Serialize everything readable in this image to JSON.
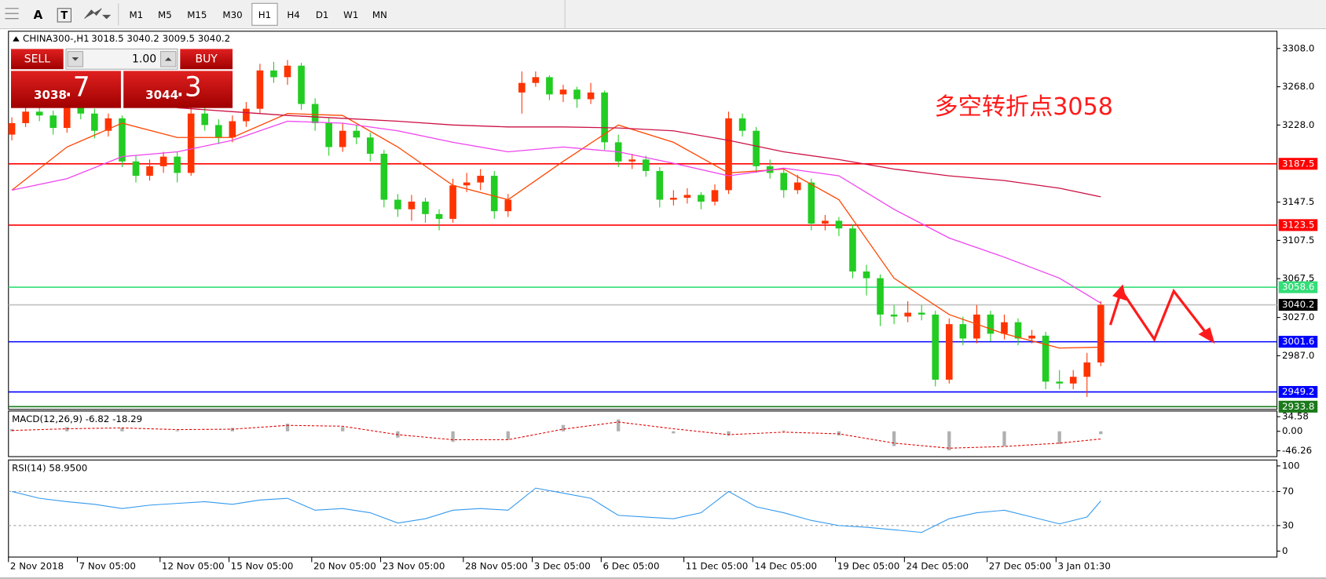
{
  "toolbar": {
    "tool_text": "A",
    "timeframes": [
      "M1",
      "M5",
      "M15",
      "M30",
      "H1",
      "H4",
      "D1",
      "W1",
      "MN"
    ],
    "active": "H1"
  },
  "trade_panel": {
    "sell_label": "SELL",
    "buy_label": "BUY",
    "lot": "1.00",
    "sell_price_main": "3038",
    "sell_price_frac": ".7",
    "buy_price_main": "3044",
    "buy_price_frac": ".3"
  },
  "chart_data": [
    {
      "type": "candlestick",
      "title": "CHINA300-,H1",
      "ohlc_text": "3018.5 3040.2 3009.5 3040.2",
      "annotation": "多空转折点3058",
      "up_color": "#ff3300",
      "down_color": "#22cc22",
      "categories": [
        "2 Nov 2018",
        null,
        null,
        null,
        null,
        "7 Nov 05:00",
        null,
        null,
        null,
        null,
        null,
        "12 Nov 05:00",
        null,
        null,
        null,
        null,
        "15 Nov 05:00",
        null,
        null,
        null,
        null,
        null,
        "20 Nov 05:00",
        null,
        null,
        null,
        null,
        "23 Nov 05:00",
        null,
        null,
        null,
        null,
        null,
        "28 Nov 05:00",
        null,
        null,
        null,
        null,
        "3 Dec 05:00",
        null,
        null,
        null,
        null,
        "6 Dec 05:00",
        null,
        null,
        null,
        null,
        null,
        "11 Dec 05:00",
        null,
        null,
        null,
        null,
        "14 Dec 05:00",
        null,
        null,
        null,
        null,
        null,
        "19 Dec 05:00",
        null,
        null,
        null,
        null,
        "24 Dec 05:00",
        null,
        null,
        null,
        null,
        null,
        "27 Dec 05:00",
        null,
        null,
        null,
        null,
        "3 Jan 01:30",
        null,
        null,
        null
      ],
      "candles": [
        [
          3218,
          3236,
          3212,
          3230
        ],
        [
          3230,
          3248,
          3226,
          3242
        ],
        [
          3242,
          3250,
          3232,
          3238
        ],
        [
          3238,
          3243,
          3218,
          3225
        ],
        [
          3225,
          3252,
          3220,
          3246
        ],
        [
          3246,
          3250,
          3234,
          3240
        ],
        [
          3240,
          3245,
          3214,
          3222
        ],
        [
          3222,
          3240,
          3216,
          3235
        ],
        [
          3235,
          3238,
          3184,
          3190
        ],
        [
          3190,
          3196,
          3168,
          3175
        ],
        [
          3175,
          3192,
          3170,
          3185
        ],
        [
          3185,
          3200,
          3178,
          3195
        ],
        [
          3195,
          3200,
          3168,
          3178
        ],
        [
          3178,
          3248,
          3175,
          3240
        ],
        [
          3240,
          3246,
          3222,
          3228
        ],
        [
          3228,
          3234,
          3208,
          3215
        ],
        [
          3215,
          3238,
          3210,
          3232
        ],
        [
          3232,
          3252,
          3226,
          3245
        ],
        [
          3245,
          3292,
          3240,
          3285
        ],
        [
          3285,
          3294,
          3272,
          3278
        ],
        [
          3278,
          3296,
          3270,
          3290
        ],
        [
          3290,
          3293,
          3244,
          3250
        ],
        [
          3250,
          3256,
          3222,
          3230
        ],
        [
          3230,
          3236,
          3196,
          3205
        ],
        [
          3205,
          3230,
          3200,
          3222
        ],
        [
          3222,
          3228,
          3208,
          3215
        ],
        [
          3215,
          3220,
          3190,
          3198
        ],
        [
          3198,
          3202,
          3142,
          3150
        ],
        [
          3150,
          3156,
          3132,
          3140
        ],
        [
          3140,
          3155,
          3128,
          3148
        ],
        [
          3148,
          3152,
          3126,
          3135
        ],
        [
          3135,
          3140,
          3118,
          3130
        ],
        [
          3130,
          3172,
          3126,
          3165
        ],
        [
          3165,
          3178,
          3158,
          3168
        ],
        [
          3168,
          3182,
          3160,
          3175
        ],
        [
          3175,
          3180,
          3130,
          3138
        ],
        [
          3138,
          3156,
          3132,
          3150
        ],
        [
          3262,
          3284,
          3240,
          3272
        ],
        [
          3272,
          3284,
          3268,
          3278
        ],
        [
          3278,
          3280,
          3254,
          3260
        ],
        [
          3260,
          3270,
          3252,
          3265
        ],
        [
          3265,
          3268,
          3246,
          3255
        ],
        [
          3255,
          3272,
          3250,
          3262
        ],
        [
          3262,
          3264,
          3202,
          3210
        ],
        [
          3210,
          3218,
          3184,
          3190
        ],
        [
          3190,
          3198,
          3182,
          3192
        ],
        [
          3192,
          3196,
          3174,
          3180
        ],
        [
          3180,
          3184,
          3142,
          3150
        ],
        [
          3150,
          3160,
          3144,
          3152
        ],
        [
          3152,
          3162,
          3146,
          3155
        ],
        [
          3155,
          3158,
          3140,
          3148
        ],
        [
          3148,
          3166,
          3144,
          3160
        ],
        [
          3160,
          3242,
          3156,
          3235
        ],
        [
          3235,
          3240,
          3216,
          3222
        ],
        [
          3222,
          3226,
          3178,
          3185
        ],
        [
          3185,
          3192,
          3172,
          3178
        ],
        [
          3178,
          3182,
          3152,
          3160
        ],
        [
          3160,
          3176,
          3156,
          3168
        ],
        [
          3168,
          3172,
          3118,
          3125
        ],
        [
          3125,
          3134,
          3118,
          3128
        ],
        [
          3128,
          3132,
          3112,
          3120
        ],
        [
          3120,
          3124,
          3068,
          3075
        ],
        [
          3075,
          3082,
          3050,
          3068
        ],
        [
          3068,
          3072,
          3018,
          3030
        ],
        [
          3030,
          3040,
          3020,
          3028
        ],
        [
          3028,
          3044,
          3022,
          3032
        ],
        [
          3032,
          3040,
          3024,
          3030
        ],
        [
          3030,
          3034,
          2955,
          2962
        ],
        [
          2962,
          3026,
          2958,
          3020
        ],
        [
          3020,
          3028,
          2998,
          3005
        ],
        [
          3005,
          3040,
          3000,
          3030
        ],
        [
          3030,
          3034,
          3002,
          3010
        ],
        [
          3010,
          3030,
          3004,
          3022
        ],
        [
          3022,
          3026,
          2998,
          3005
        ],
        [
          3005,
          3014,
          3000,
          3008
        ],
        [
          3008,
          3012,
          2952,
          2960
        ],
        [
          2960,
          2972,
          2952,
          2958
        ],
        [
          2958,
          2972,
          2952,
          2965
        ],
        [
          2965,
          2990,
          2944,
          2980
        ],
        [
          2980,
          3044,
          2976,
          3040.2
        ]
      ],
      "series": [
        {
          "color": "#ff4500",
          "x": [
            0,
            4,
            8,
            12,
            16,
            20,
            24,
            28,
            32,
            36,
            40,
            44,
            48,
            52,
            56,
            60,
            64,
            68,
            72,
            76,
            79
          ],
          "values": [
            3160,
            3205,
            3230,
            3215,
            3215,
            3240,
            3238,
            3205,
            3165,
            3150,
            3190,
            3228,
            3210,
            3178,
            3182,
            3150,
            3068,
            3030,
            3010,
            2995,
            2996
          ]
        },
        {
          "color": "#ee44ee",
          "x": [
            0,
            4,
            8,
            12,
            16,
            20,
            24,
            28,
            32,
            36,
            40,
            44,
            48,
            52,
            56,
            60,
            64,
            68,
            72,
            76,
            79
          ],
          "values": [
            3160,
            3172,
            3195,
            3200,
            3212,
            3232,
            3230,
            3222,
            3210,
            3200,
            3205,
            3200,
            3188,
            3175,
            3183,
            3175,
            3140,
            3110,
            3090,
            3068,
            3042
          ]
        },
        {
          "color": "#cc1144",
          "x": [
            0,
            4,
            8,
            12,
            16,
            20,
            24,
            28,
            32,
            36,
            40,
            44,
            48,
            52,
            56,
            60,
            64,
            68,
            72,
            76,
            79
          ],
          "values": [
            null,
            null,
            null,
            3246,
            3242,
            3238,
            3235,
            3232,
            3228,
            3226,
            3226,
            3225,
            3222,
            3212,
            3200,
            3192,
            3182,
            3175,
            3170,
            3162,
            3153
          ]
        }
      ],
      "ylim": [
        2931,
        3326
      ],
      "yticks": [
        {
          "value": 3308,
          "label": "3308.0"
        },
        {
          "value": 3268,
          "label": "3268.0"
        },
        {
          "value": 3228,
          "label": "3228.0"
        },
        3147.5,
        3107.5,
        3067.5,
        {
          "value": 3027,
          "label": "3027.0"
        },
        {
          "value": 2987,
          "label": "2987.0"
        }
      ],
      "levels": [
        {
          "value": 3187.5,
          "color": "#ff0000"
        },
        {
          "value": 3123.5,
          "color": "#ff0000"
        },
        {
          "value": 3058.6,
          "color": "#33dd77"
        },
        {
          "value": 3040.2,
          "color": "#c0c0c0",
          "label_color": "#000000"
        },
        {
          "value": 3001.6,
          "color": "#0000ff"
        },
        {
          "value": 2949.2,
          "color": "#0000ff"
        },
        {
          "value": 2933.8,
          "color": "#1a7a1a"
        }
      ]
    },
    {
      "type": "macd",
      "title": "MACD(12,26,9) -6.82 -18.29",
      "ylim": [
        -60,
        44
      ],
      "yticks": [
        34.58,
        {
          "value": 0,
          "label": "0.00"
        },
        -46.26
      ],
      "series": [
        {
          "type": "bar",
          "color": "#b0b0b0",
          "x": [
            0,
            4,
            8,
            12,
            16,
            20,
            24,
            28,
            32,
            36,
            40,
            44,
            48,
            52,
            56,
            60,
            64,
            68,
            72,
            76,
            79
          ],
          "values": [
            5,
            10,
            8,
            2,
            8,
            18,
            10,
            -15,
            -25,
            -20,
            15,
            28,
            -5,
            -10,
            2,
            -10,
            -35,
            -45,
            -35,
            -30,
            -6.82
          ]
        },
        {
          "type": "line",
          "color": "#e00000",
          "dash": true,
          "x": [
            0,
            4,
            8,
            12,
            16,
            20,
            24,
            28,
            32,
            36,
            40,
            44,
            48,
            52,
            56,
            60,
            64,
            68,
            72,
            76,
            79
          ],
          "values": [
            2,
            6,
            8,
            4,
            5,
            14,
            12,
            -8,
            -20,
            -20,
            5,
            22,
            6,
            -8,
            -2,
            -6,
            -28,
            -40,
            -36,
            -28,
            -18.29
          ]
        }
      ]
    },
    {
      "type": "line",
      "title": "RSI(14) 58.9500",
      "ylim": [
        -5,
        105
      ],
      "yticks": [
        100,
        70,
        30,
        0
      ],
      "levels": [
        70,
        30
      ],
      "series": [
        {
          "color": "#3399ee",
          "x": [
            0,
            2,
            4,
            6,
            8,
            10,
            12,
            14,
            16,
            18,
            20,
            22,
            24,
            26,
            28,
            30,
            32,
            34,
            36,
            38,
            40,
            42,
            44,
            46,
            48,
            50,
            52,
            54,
            56,
            58,
            60,
            62,
            64,
            66,
            68,
            70,
            72,
            74,
            76,
            78,
            79
          ],
          "values": [
            70,
            62,
            58,
            55,
            50,
            54,
            56,
            58,
            55,
            60,
            62,
            48,
            50,
            45,
            33,
            38,
            48,
            50,
            48,
            74,
            68,
            62,
            42,
            40,
            38,
            45,
            70,
            52,
            45,
            36,
            30,
            28,
            25,
            22,
            38,
            45,
            48,
            40,
            32,
            40,
            58.95
          ]
        }
      ]
    }
  ]
}
